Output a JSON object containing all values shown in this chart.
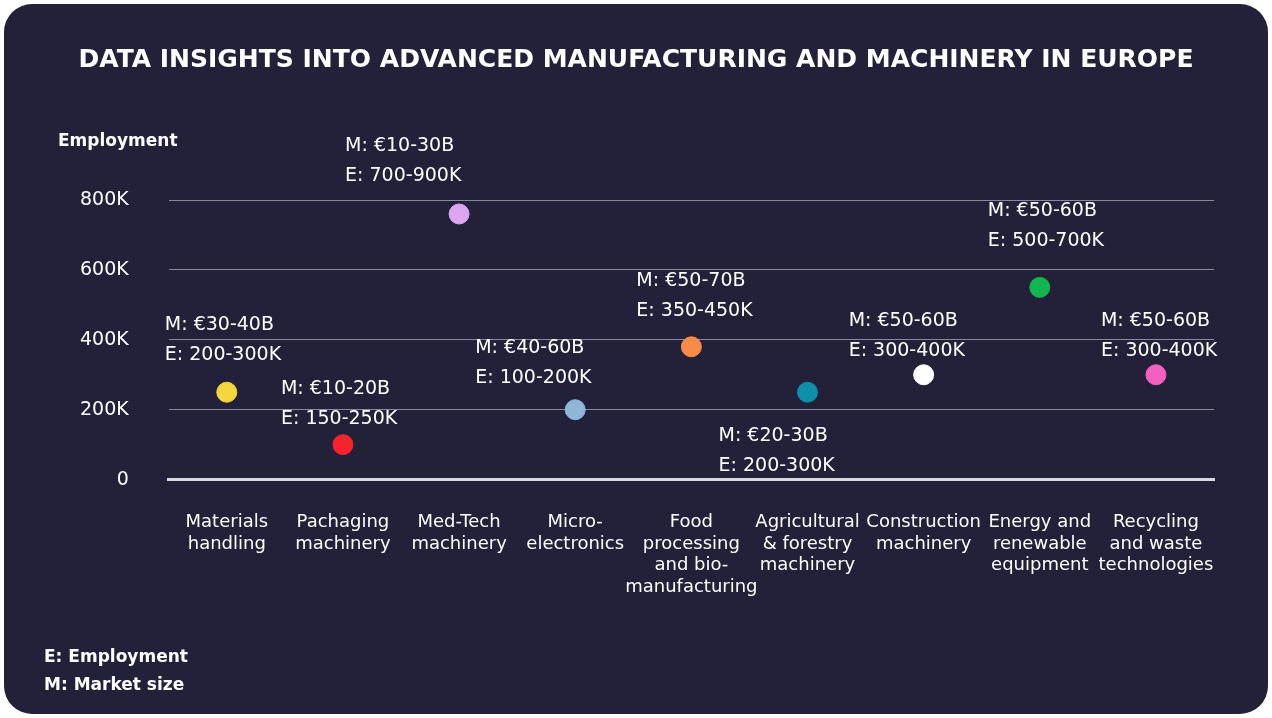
{
  "chart_data": {
    "type": "scatter",
    "title": "DATA INSIGHTS INTO ADVANCED MANUFACTURING AND MACHINERY IN EUROPE",
    "ylabel": "Employment",
    "categories": [
      "Materials handling",
      "Pachaging machinery",
      "Med-Tech machinery",
      "Micro-electronics",
      "Food processing and bio-manufacturing",
      "Agricultural & forestry machinery",
      "Construction machinery",
      "Energy and renewable equipment",
      "Recycling and waste technologies"
    ],
    "values": [
      250,
      100,
      760,
      200,
      380,
      250,
      300,
      550,
      300
    ],
    "colors": [
      "#f5d63d",
      "#f5242a",
      "#dba6ef",
      "#8fb5d8",
      "#f78b48",
      "#0f8fa9",
      "#ffffff",
      "#11b64f",
      "#f45fc0"
    ],
    "ylim": [
      0,
      800
    ],
    "yticks": [
      {
        "value": 0,
        "label": "0"
      },
      {
        "value": 200,
        "label": "200K"
      },
      {
        "value": 400,
        "label": "400K"
      },
      {
        "value": 600,
        "label": "600K"
      },
      {
        "value": 800,
        "label": "800K"
      }
    ],
    "grid": "y",
    "marker": "circle",
    "annotations": [
      {
        "text": "M: €30-40B\nE: 200-300K",
        "x": "Materials handling",
        "y": 250
      },
      {
        "text": "M: €10-20B\nE: 150-250K",
        "x": "Pachaging machinery",
        "y": 100
      },
      {
        "text": "M: €10-30B\nE: 700-900K",
        "x": "Med-Tech machinery",
        "y": 760
      },
      {
        "text": "M: €40-60B\nE: 100-200K",
        "x": "Micro-electronics",
        "y": 200
      },
      {
        "text": "M: €50-70B\nE: 350-450K",
        "x": "Food processing and bio-manufacturing",
        "y": 380
      },
      {
        "text": "M: €20-30B\nE: 200-300K",
        "x": "Agricultural & forestry machinery",
        "y": 250
      },
      {
        "text": "M: €50-60B\nE: 300-400K",
        "x": "Construction machinery",
        "y": 300
      },
      {
        "text": "M: €50-60B\nE: 500-700K",
        "x": "Energy and renewable equipment",
        "y": 550
      },
      {
        "text": "M: €50-60B\nE: 300-400K",
        "x": "Recycling and waste technologies",
        "y": 300
      },
      "E: Employment\nM: Market size"
    ]
  }
}
